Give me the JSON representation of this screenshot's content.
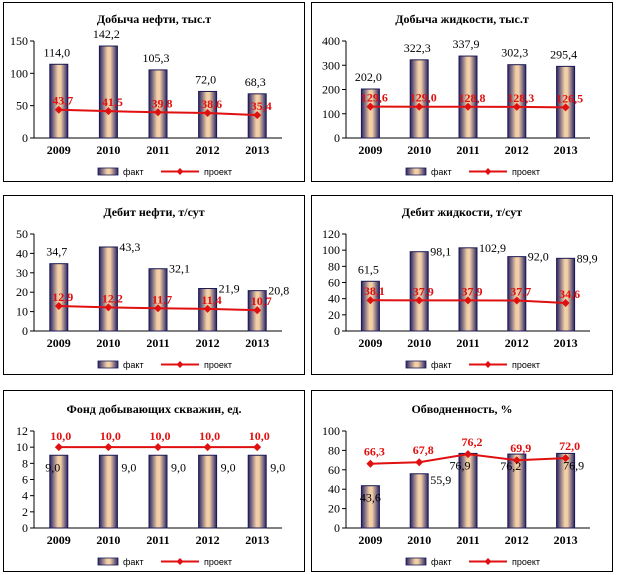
{
  "colors": {
    "bar_fill_center": "#f2cfa6",
    "bar_fill_edge": "#2a2466",
    "bar_stroke": "#1a1a55",
    "line": "#e01010",
    "axis": "#000000"
  },
  "chart_data": [
    {
      "id": "oil",
      "type": "bar",
      "title": "Добыча нефти, тыс.т",
      "categories": [
        "2009",
        "2010",
        "2011",
        "2012",
        "2013"
      ],
      "ylim": [
        0,
        150
      ],
      "yticks": [
        "0",
        "50",
        "100",
        "150"
      ],
      "yticks_values": [
        0,
        50,
        100,
        150
      ],
      "series": [
        {
          "name": "факт",
          "kind": "bar",
          "values": [
            114.0,
            142.2,
            105.3,
            72.0,
            68.3
          ],
          "labels": [
            "114,0",
            "142,2",
            "105,3",
            "72,0",
            "68,3"
          ]
        },
        {
          "name": "проект",
          "kind": "line",
          "values": [
            43.7,
            41.5,
            39.8,
            38.6,
            35.4
          ],
          "labels": [
            "43,7",
            "41,5",
            "39,8",
            "38,6",
            "35,4"
          ]
        }
      ],
      "legend": [
        "факт",
        "проект"
      ]
    },
    {
      "id": "liquid",
      "type": "bar",
      "title": "Добыча жидкости, тыс.т",
      "categories": [
        "2009",
        "2010",
        "2011",
        "2012",
        "2013"
      ],
      "ylim": [
        0,
        400
      ],
      "yticks": [
        "0",
        "100",
        "200",
        "300",
        "400"
      ],
      "yticks_values": [
        0,
        100,
        200,
        300,
        400
      ],
      "series": [
        {
          "name": "факт",
          "kind": "bar",
          "values": [
            202.0,
            322.3,
            337.9,
            302.3,
            295.4
          ],
          "labels": [
            "202,0",
            "322,3",
            "337,9",
            "302,3",
            "295,4"
          ]
        },
        {
          "name": "проект",
          "kind": "line",
          "values": [
            129.6,
            129.0,
            128.8,
            128.3,
            126.5
          ],
          "labels": [
            "129,6",
            "129,0",
            "128,8",
            "128,3",
            "126,5"
          ]
        }
      ],
      "legend": [
        "факт",
        "проект"
      ]
    },
    {
      "id": "oil_rate",
      "type": "bar",
      "title": "Дебит нефти, т/сут",
      "categories": [
        "2009",
        "2010",
        "2011",
        "2012",
        "2013"
      ],
      "ylim": [
        0,
        50
      ],
      "yticks": [
        "0",
        "10",
        "20",
        "30",
        "40",
        "50"
      ],
      "yticks_values": [
        0,
        10,
        20,
        30,
        40,
        50
      ],
      "series": [
        {
          "name": "факт",
          "kind": "bar",
          "values": [
            34.7,
            43.3,
            32.1,
            21.9,
            20.8
          ],
          "labels": [
            "34,7",
            "43,3",
            "32,1",
            "21,9",
            "20,8"
          ]
        },
        {
          "name": "проект",
          "kind": "line",
          "values": [
            12.9,
            12.2,
            11.7,
            11.4,
            10.7
          ],
          "labels": [
            "12,9",
            "12,2",
            "11,7",
            "11,4",
            "10,7"
          ]
        }
      ],
      "legend": [
        "факт",
        "проект"
      ]
    },
    {
      "id": "liquid_rate",
      "type": "bar",
      "title": "Дебит жидкости, т/сут",
      "categories": [
        "2009",
        "2010",
        "2011",
        "2012",
        "2013"
      ],
      "ylim": [
        0,
        120
      ],
      "yticks": [
        "0",
        "20",
        "40",
        "60",
        "80",
        "100",
        "120"
      ],
      "yticks_values": [
        0,
        20,
        40,
        60,
        80,
        100,
        120
      ],
      "series": [
        {
          "name": "факт",
          "kind": "bar",
          "values": [
            61.5,
            98.1,
            102.9,
            92.0,
            89.9
          ],
          "labels": [
            "61,5",
            "98,1",
            "102,9",
            "92,0",
            "89,9"
          ]
        },
        {
          "name": "проект",
          "kind": "line",
          "values": [
            38.1,
            37.9,
            37.9,
            37.7,
            34.6
          ],
          "labels": [
            "38,1",
            "37,9",
            "37,9",
            "37,7",
            "34,6"
          ]
        }
      ],
      "legend": [
        "факт",
        "проект"
      ]
    },
    {
      "id": "wells",
      "type": "bar",
      "title": "Фонд добывающих скважин, ед.",
      "categories": [
        "2009",
        "2010",
        "2011",
        "2012",
        "2013"
      ],
      "ylim": [
        0,
        12
      ],
      "yticks": [
        "0",
        "2",
        "4",
        "6",
        "8",
        "10",
        "12"
      ],
      "yticks_values": [
        0,
        2,
        4,
        6,
        8,
        10,
        12
      ],
      "series": [
        {
          "name": "факт",
          "kind": "bar",
          "values": [
            9.0,
            9.0,
            9.0,
            9.0,
            9.0
          ],
          "labels": [
            "9,0",
            "9,0",
            "9,0",
            "9,0",
            "9,0"
          ]
        },
        {
          "name": "проект",
          "kind": "line",
          "values": [
            10.0,
            10.0,
            10.0,
            10.0,
            10.0
          ],
          "labels": [
            "10,0",
            "10,0",
            "10,0",
            "10,0",
            "10,0"
          ]
        }
      ],
      "legend": [
        "факт",
        "проект"
      ]
    },
    {
      "id": "watercut",
      "type": "bar",
      "title": "Обводненность, %",
      "categories": [
        "2009",
        "2010",
        "2011",
        "2012",
        "2013"
      ],
      "ylim": [
        0,
        100
      ],
      "yticks": [
        "0",
        "20",
        "40",
        "60",
        "80",
        "100"
      ],
      "yticks_values": [
        0,
        20,
        40,
        60,
        80,
        100
      ],
      "series": [
        {
          "name": "факт",
          "kind": "bar",
          "values": [
            43.6,
            55.9,
            76.9,
            76.2,
            76.9
          ],
          "labels": [
            "43,6",
            "55,9",
            "76,9",
            "76,2",
            "76,9"
          ]
        },
        {
          "name": "проект",
          "kind": "line",
          "values": [
            66.3,
            67.8,
            76.2,
            69.9,
            72.0
          ],
          "labels": [
            "66,3",
            "67,8",
            "76,2",
            "69,9",
            "72,0"
          ]
        }
      ],
      "legend": [
        "факт",
        "проект"
      ]
    }
  ]
}
